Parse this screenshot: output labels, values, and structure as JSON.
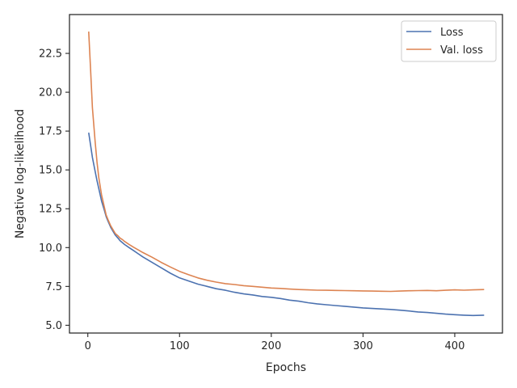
{
  "chart_data": {
    "type": "line",
    "title": "",
    "xlabel": "Epochs",
    "ylabel": "Negative log-likelihood",
    "xlim": [
      -20,
      452
    ],
    "ylim": [
      4.5,
      25.0
    ],
    "xticks": [
      0,
      100,
      200,
      300,
      400
    ],
    "yticks": [
      5.0,
      7.5,
      10.0,
      12.5,
      15.0,
      17.5,
      20.0,
      22.5
    ],
    "ytick_labels": [
      "5.0",
      "7.5",
      "10.0",
      "12.5",
      "15.0",
      "17.5",
      "20.0",
      "22.5"
    ],
    "grid": false,
    "legend_position": "top-right",
    "series": [
      {
        "name": "Loss",
        "color": "#4c72b0",
        "x": [
          1,
          3,
          5,
          8,
          10,
          12,
          15,
          18,
          20,
          22,
          25,
          28,
          30,
          33,
          35,
          38,
          40,
          45,
          50,
          55,
          60,
          70,
          80,
          90,
          100,
          110,
          120,
          130,
          140,
          150,
          160,
          170,
          180,
          190,
          200,
          210,
          220,
          230,
          240,
          250,
          260,
          270,
          280,
          290,
          300,
          310,
          320,
          330,
          340,
          350,
          360,
          370,
          380,
          390,
          400,
          410,
          420,
          432
        ],
        "y": [
          17.4,
          16.6,
          15.8,
          14.9,
          14.3,
          13.8,
          13.0,
          12.4,
          12.0,
          11.7,
          11.3,
          11.0,
          10.8,
          10.6,
          10.45,
          10.3,
          10.2,
          10.0,
          9.8,
          9.6,
          9.4,
          9.05,
          8.7,
          8.35,
          8.05,
          7.85,
          7.65,
          7.5,
          7.35,
          7.25,
          7.12,
          7.02,
          6.95,
          6.85,
          6.8,
          6.72,
          6.62,
          6.55,
          6.45,
          6.38,
          6.32,
          6.27,
          6.22,
          6.17,
          6.12,
          6.08,
          6.05,
          6.02,
          5.97,
          5.92,
          5.86,
          5.82,
          5.77,
          5.72,
          5.68,
          5.65,
          5.63,
          5.65
        ]
      },
      {
        "name": "Val. loss",
        "color": "#dd8452",
        "x": [
          1,
          3,
          5,
          8,
          10,
          12,
          15,
          18,
          20,
          22,
          25,
          28,
          30,
          33,
          35,
          38,
          40,
          45,
          50,
          55,
          60,
          70,
          80,
          90,
          100,
          110,
          120,
          130,
          140,
          150,
          160,
          170,
          180,
          190,
          200,
          210,
          220,
          230,
          240,
          250,
          260,
          270,
          280,
          290,
          300,
          310,
          320,
          330,
          340,
          350,
          360,
          370,
          380,
          390,
          400,
          410,
          420,
          432
        ],
        "y": [
          23.9,
          21.5,
          19.0,
          16.8,
          15.5,
          14.5,
          13.4,
          12.6,
          12.1,
          11.8,
          11.4,
          11.1,
          10.9,
          10.75,
          10.62,
          10.5,
          10.4,
          10.2,
          10.02,
          9.85,
          9.68,
          9.38,
          9.05,
          8.75,
          8.47,
          8.25,
          8.05,
          7.9,
          7.78,
          7.68,
          7.62,
          7.55,
          7.5,
          7.45,
          7.4,
          7.37,
          7.33,
          7.3,
          7.28,
          7.26,
          7.25,
          7.24,
          7.23,
          7.22,
          7.21,
          7.2,
          7.19,
          7.18,
          7.2,
          7.22,
          7.23,
          7.24,
          7.22,
          7.25,
          7.28,
          7.26,
          7.28,
          7.3
        ]
      }
    ]
  }
}
